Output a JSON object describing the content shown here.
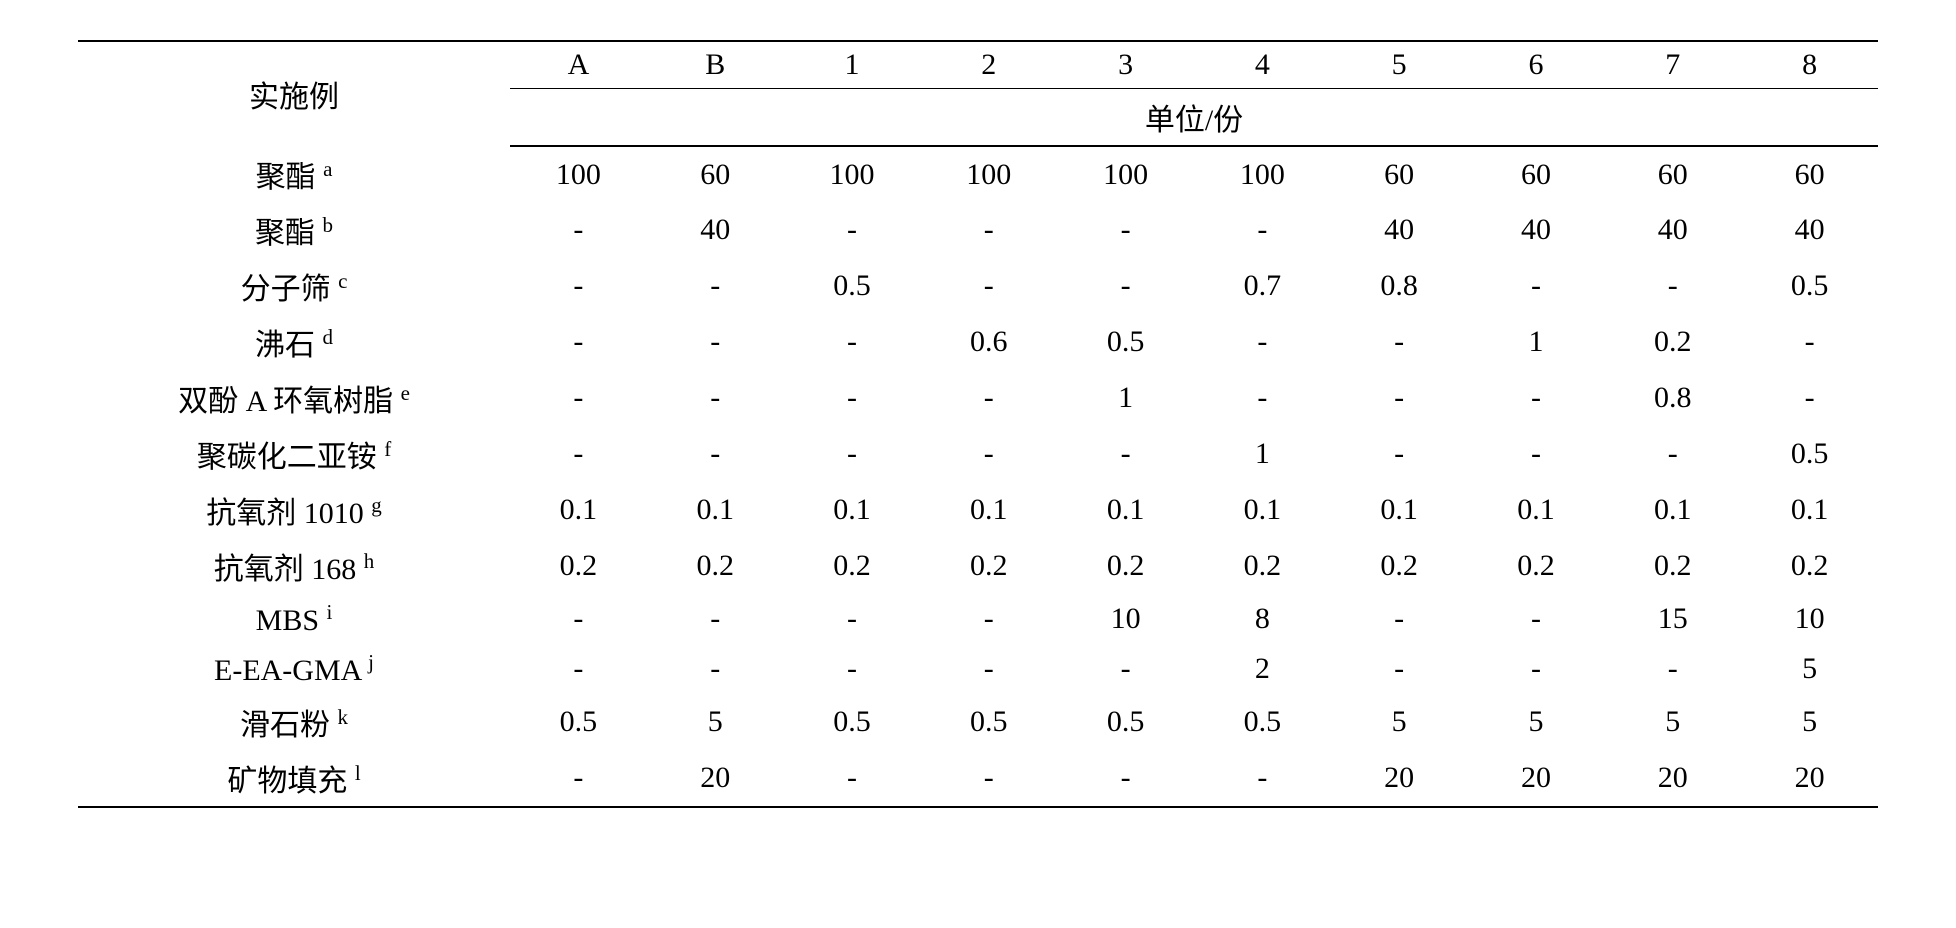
{
  "header": {
    "row_label": "实施例",
    "cols": [
      "A",
      "B",
      "1",
      "2",
      "3",
      "4",
      "5",
      "6",
      "7",
      "8"
    ],
    "unit_label": "单位/份"
  },
  "rows": [
    {
      "label": "聚酯",
      "sup": "a",
      "vals": [
        "100",
        "60",
        "100",
        "100",
        "100",
        "100",
        "60",
        "60",
        "60",
        "60"
      ]
    },
    {
      "label": "聚酯",
      "sup": "b",
      "vals": [
        "-",
        "40",
        "-",
        "-",
        "-",
        "-",
        "40",
        "40",
        "40",
        "40"
      ]
    },
    {
      "label": "分子筛",
      "sup": "c",
      "vals": [
        "-",
        "-",
        "0.5",
        "-",
        "-",
        "0.7",
        "0.8",
        "-",
        "-",
        "0.5"
      ]
    },
    {
      "label": "沸石",
      "sup": "d",
      "vals": [
        "-",
        "-",
        "-",
        "0.6",
        "0.5",
        "-",
        "-",
        "1",
        "0.2",
        "-"
      ]
    },
    {
      "label": "双酚 A 环氧树脂",
      "sup": "e",
      "vals": [
        "-",
        "-",
        "-",
        "-",
        "1",
        "-",
        "-",
        "-",
        "0.8",
        "-"
      ]
    },
    {
      "label": "聚碳化二亚铵",
      "sup": "f",
      "vals": [
        "-",
        "-",
        "-",
        "-",
        "-",
        "1",
        "-",
        "-",
        "-",
        "0.5"
      ]
    },
    {
      "label": "抗氧剂 1010",
      "sup": "g",
      "vals": [
        "0.1",
        "0.1",
        "0.1",
        "0.1",
        "0.1",
        "0.1",
        "0.1",
        "0.1",
        "0.1",
        "0.1"
      ]
    },
    {
      "label": "抗氧剂 168",
      "sup": "h",
      "vals": [
        "0.2",
        "0.2",
        "0.2",
        "0.2",
        "0.2",
        "0.2",
        "0.2",
        "0.2",
        "0.2",
        "0.2"
      ]
    },
    {
      "label": "MBS",
      "sup": "i",
      "vals": [
        "-",
        "-",
        "-",
        "-",
        "10",
        "8",
        "-",
        "-",
        "15",
        "10"
      ]
    },
    {
      "label": "E-EA-GMA",
      "sup": "j",
      "vals": [
        "-",
        "-",
        "-",
        "-",
        "-",
        "2",
        "-",
        "-",
        "-",
        "5"
      ]
    },
    {
      "label": "滑石粉",
      "sup": "k",
      "vals": [
        "0.5",
        "5",
        "0.5",
        "0.5",
        "0.5",
        "0.5",
        "5",
        "5",
        "5",
        "5"
      ]
    },
    {
      "label": "矿物填充",
      "sup": "l",
      "vals": [
        "-",
        "20",
        "-",
        "-",
        "-",
        "-",
        "20",
        "20",
        "20",
        "20"
      ]
    }
  ],
  "layout": {
    "num_cols": 10,
    "font_size": 30,
    "background_color": "#ffffff",
    "text_color": "#000000",
    "rule_color": "#000000",
    "label_col_width_pct": 24
  }
}
